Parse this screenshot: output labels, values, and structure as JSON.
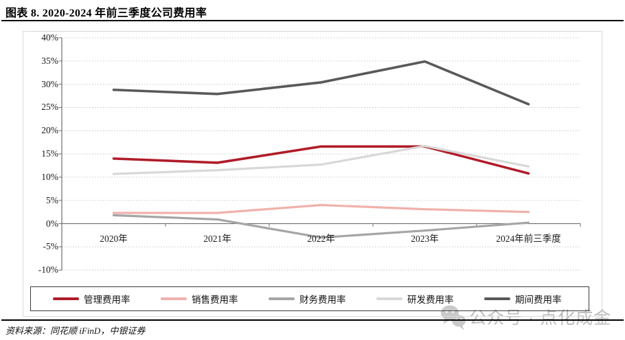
{
  "page": {
    "title": "图表 8. 2020-2024 年前三季度公司费用率",
    "source_label": "资料来源：",
    "source_text": "同花顺 iFinD，中银证券",
    "watermark_text": "公众号 · 点化成金"
  },
  "chart_data": {
    "type": "line",
    "title": "图表 8. 2020-2024 年前三季度公司费用率",
    "categories": [
      "2020年",
      "2021年",
      "2022年",
      "2023年",
      "2024年前三季度"
    ],
    "series": [
      {
        "name": "管理费用率",
        "color": "#b01c2a",
        "values": [
          14.0,
          13.1,
          16.6,
          16.6,
          10.8
        ]
      },
      {
        "name": "销售费用率",
        "color": "#f0b1ac",
        "values": [
          2.3,
          2.3,
          4.0,
          3.1,
          2.5
        ]
      },
      {
        "name": "财务费用率",
        "color": "#a5a5a5",
        "values": [
          1.8,
          0.9,
          -3.0,
          -1.5,
          0.2
        ]
      },
      {
        "name": "研发费用率",
        "color": "#d8d8d8",
        "values": [
          10.7,
          11.5,
          12.7,
          16.7,
          12.3
        ]
      },
      {
        "name": "期间费用率",
        "color": "#595959",
        "values": [
          28.8,
          27.9,
          30.4,
          34.9,
          25.7
        ]
      }
    ],
    "xlabel": "",
    "ylabel": "",
    "ylim": [
      -10,
      40
    ],
    "ytick_step": 5,
    "ytick_labels": [
      "40%",
      "35%",
      "30%",
      "25%",
      "20%",
      "15%",
      "10%",
      "5%",
      "0%",
      "-5%",
      "-10%"
    ],
    "grid": "horizontal-dotted",
    "legend_position": "bottom",
    "colors": {
      "axis": "#6e6e6e",
      "gridline": "#c6c6c6",
      "frame_border": "#d9d9d9",
      "legend_border": "#3a3a3a",
      "watermark": "#bdbdbd"
    }
  }
}
